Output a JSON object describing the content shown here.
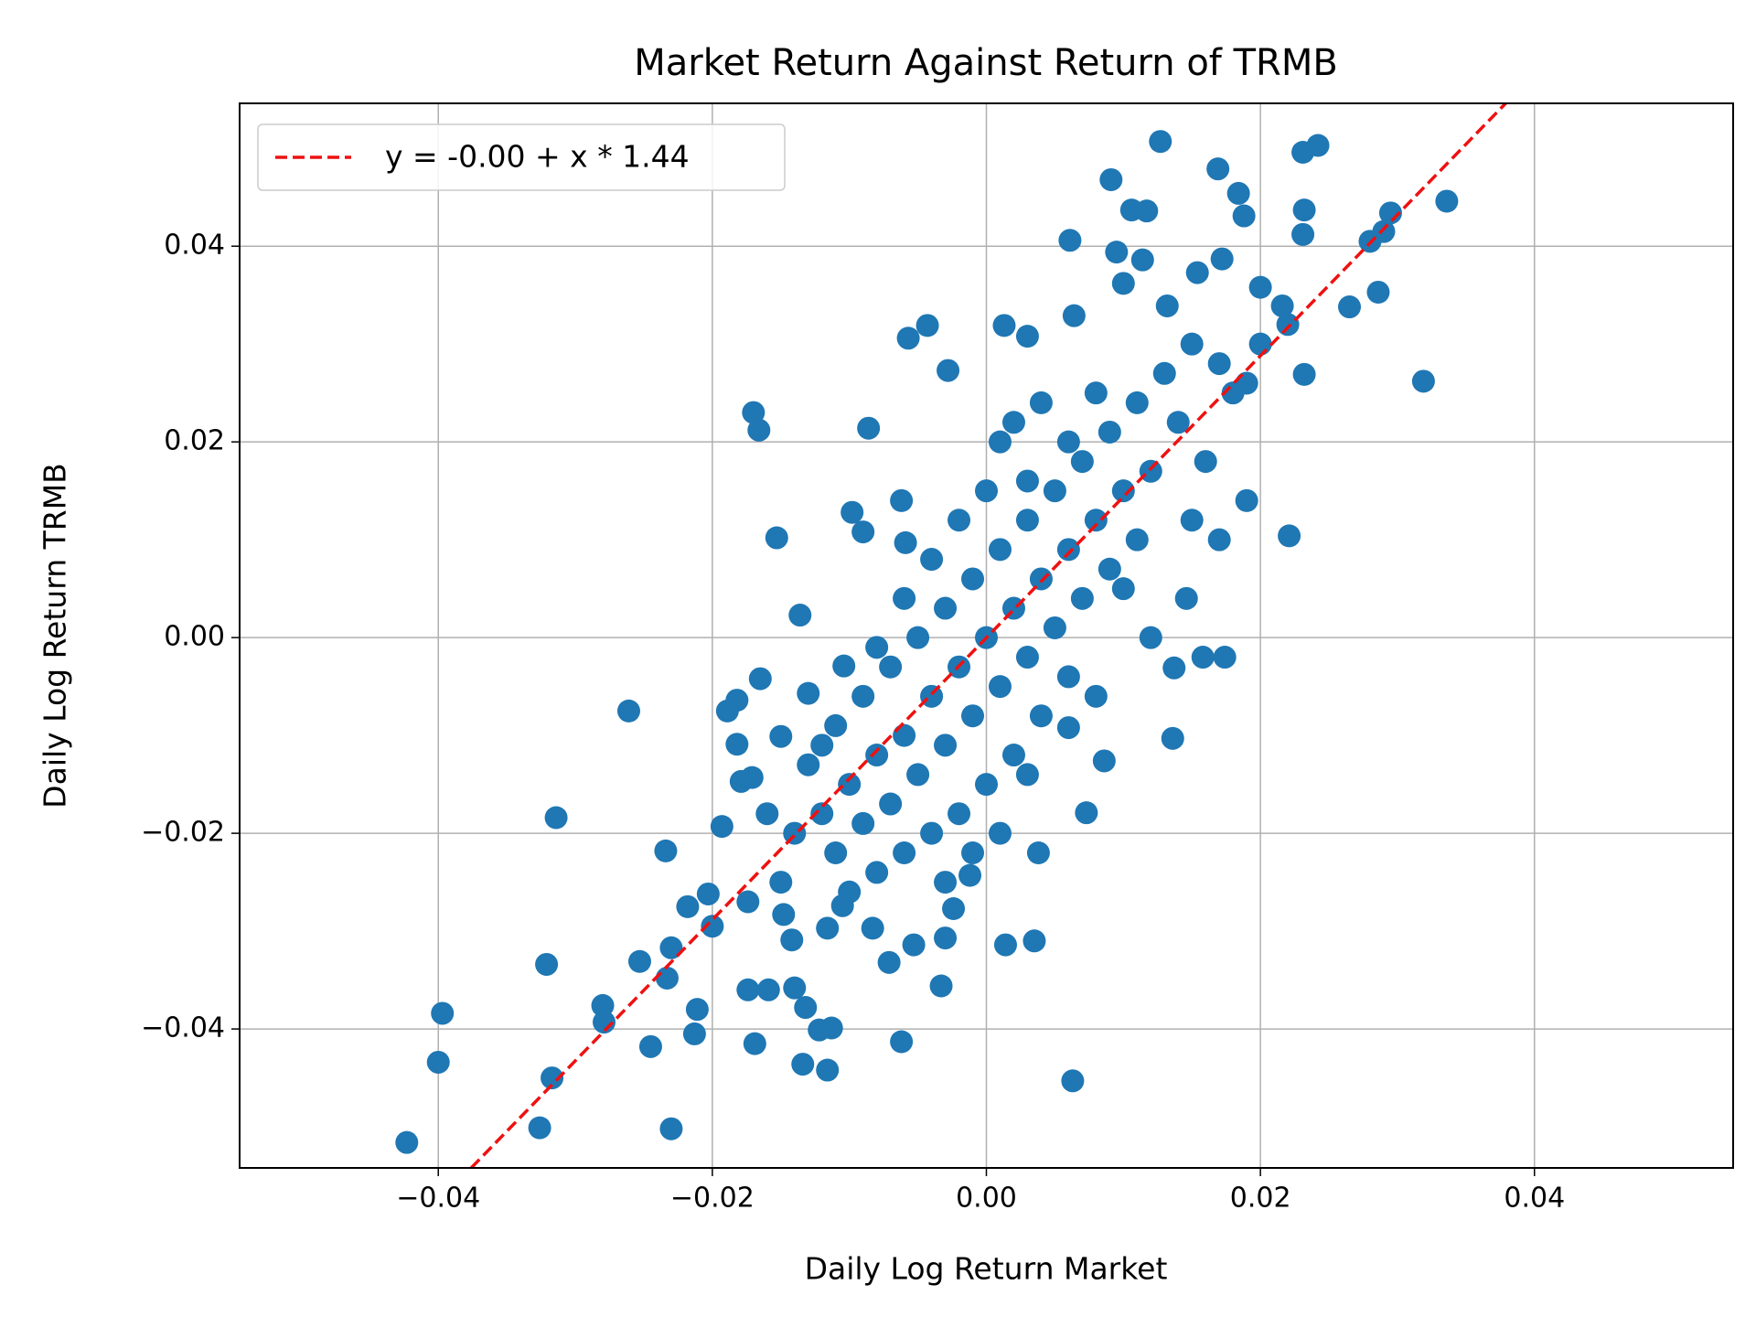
{
  "chart_data": {
    "type": "scatter",
    "title": "Market Return Against Return of TRMB",
    "x_label": "Daily Log Return Market",
    "y_label": "Daily Log Return TRMB",
    "color": "#1f77b4",
    "grid": true,
    "legend": "upper left",
    "xlim": [
      -0.0545,
      0.0545
    ],
    "ylim": [
      -0.0542,
      0.0546
    ],
    "xticks": [
      {
        "value": -0.04,
        "label": "−0.04"
      },
      {
        "value": -0.02,
        "label": "−0.02"
      },
      {
        "value": 0,
        "label": "0.00"
      },
      0.02,
      0.04
    ],
    "yticks": [
      {
        "value": -0.04,
        "label": "−0.04"
      },
      {
        "value": -0.02,
        "label": "−0.02"
      },
      {
        "value": 0,
        "label": "0.00"
      },
      0.02,
      0.04
    ],
    "x": [
      -0.0423,
      -0.0397,
      -0.04,
      -0.0326,
      -0.0321,
      -0.0317,
      -0.0314,
      -0.028,
      -0.0279,
      -0.0261,
      -0.0253,
      -0.0245,
      -0.0234,
      -0.0233,
      -0.023,
      -0.023,
      -0.0218,
      -0.0213,
      -0.0211,
      -0.0203,
      -0.02,
      -0.0193,
      -0.0189,
      -0.0182,
      -0.0182,
      -0.0179,
      -0.0174,
      -0.0174,
      -0.0171,
      -0.017,
      -0.0166,
      -0.0169,
      -0.0165,
      -0.0159,
      -0.0153,
      -0.015,
      -0.0148,
      -0.0142,
      -0.014,
      -0.0136,
      -0.0134,
      -0.0132,
      -0.013,
      -0.0122,
      -0.0116,
      -0.0113,
      -0.0116,
      -0.0105,
      -0.0104,
      -0.0098,
      -0.009,
      -0.0086,
      -0.0083,
      -0.0071,
      -0.0062,
      -0.0062,
      -0.0059,
      -0.0057,
      -0.0043,
      -0.0028,
      -0.0053,
      -0.0033,
      -0.003,
      -0.0024,
      -0.0012,
      0.0013,
      0.0014,
      0.003,
      0.0035,
      0.0038,
      0.0061,
      0.0063,
      0.006,
      0.0064,
      0.0073,
      0.0086,
      0.0091,
      0.0095,
      0.01,
      0.0106,
      0.0117,
      0.0127,
      0.0114,
      0.0132,
      0.0136,
      0.0137,
      0.0146,
      0.0158,
      0.0174,
      0.0154,
      0.0169,
      0.0172,
      0.0184,
      0.0188,
      0.019,
      0.02,
      0.0216,
      0.0221,
      0.0231,
      0.0242,
      0.0232,
      0.0231,
      0.0232,
      0.0265,
      0.028,
      0.0286,
      0.029,
      0.0295,
      0.0319,
      0.0336,
      -0.012,
      -0.01,
      -0.008,
      -0.006,
      -0.004,
      -0.002,
      0,
      0.002,
      0.004,
      0.006,
      0.008,
      0.01,
      -0.011,
      -0.009,
      -0.007,
      -0.005,
      -0.003,
      -0.001,
      0.001,
      0.003,
      0.005,
      0.007,
      0.009,
      0.011,
      -0.013,
      -0.011,
      -0.009,
      -0.007,
      -0.005,
      -0.003,
      -0.001,
      0.001,
      0.003,
      0.005,
      0.007,
      0.009,
      0.011,
      0.013,
      0.015,
      0.017,
      0.014,
      0.016,
      0.012,
      0.018,
      0.02,
      0.022,
      0,
      0.002,
      0.004,
      -0.002,
      -0.004,
      -0.006,
      -0.008,
      0,
      0.002,
      0.004,
      0.006,
      -0.002,
      -0.004,
      -0.006,
      -0.008,
      -0.01,
      -0.014,
      -0.015,
      0.01,
      0.012,
      0.008,
      0.015,
      0.017,
      0.019,
      -0.016,
      -0.012,
      0.001,
      0.003,
      0.006,
      0.008,
      -0.003,
      -0.001,
      0.001,
      0.003
    ],
    "values": [
      -0.0516,
      -0.0384,
      -0.0434,
      -0.0501,
      -0.0334,
      -0.045,
      -0.0184,
      -0.0376,
      -0.0393,
      -0.0075,
      -0.0331,
      -0.0418,
      -0.0218,
      -0.0348,
      -0.0317,
      -0.0502,
      -0.0275,
      -0.0405,
      -0.038,
      -0.0262,
      -0.0295,
      -0.0193,
      -0.0075,
      -0.0064,
      -0.0109,
      -0.0147,
      -0.036,
      -0.027,
      -0.0143,
      0.023,
      0.0212,
      -0.0415,
      -0.0042,
      -0.036,
      0.0102,
      -0.0101,
      -0.0283,
      -0.0309,
      -0.0358,
      0.0023,
      -0.0436,
      -0.0378,
      -0.0057,
      -0.0401,
      -0.0442,
      -0.0399,
      -0.0297,
      -0.0274,
      -0.0029,
      0.0128,
      0.0108,
      0.0214,
      -0.0297,
      -0.0332,
      -0.0413,
      0.014,
      0.0097,
      0.0306,
      0.0319,
      0.0273,
      -0.0314,
      -0.0356,
      -0.0307,
      -0.0277,
      -0.0243,
      0.0319,
      -0.0314,
      0.0308,
      -0.031,
      -0.022,
      0.0406,
      -0.0453,
      -0.0092,
      0.0329,
      -0.0179,
      -0.0126,
      0.0468,
      0.0394,
      0.0362,
      0.0437,
      0.0436,
      0.0507,
      0.0386,
      0.0339,
      -0.0103,
      -0.0031,
      0.004,
      -0.002,
      -0.002,
      0.0373,
      0.0479,
      0.0387,
      0.0454,
      0.0431,
      0.014,
      0.0358,
      0.0339,
      0.0104,
      0.0496,
      0.0503,
      0.0437,
      0.0412,
      0.0269,
      0.0338,
      0.0405,
      0.0353,
      0.0415,
      0.0434,
      0.0262,
      0.0446,
      -0.018,
      -0.015,
      -0.012,
      -0.01,
      -0.006,
      -0.003,
      0,
      0.003,
      0.006,
      0.009,
      0.012,
      0.015,
      -0.022,
      -0.019,
      -0.017,
      -0.014,
      -0.011,
      -0.008,
      -0.005,
      -0.002,
      0.001,
      0.004,
      0.007,
      0.01,
      -0.013,
      -0.009,
      -0.006,
      -0.003,
      0,
      0.003,
      0.006,
      0.009,
      0.012,
      0.015,
      0.018,
      0.021,
      0.024,
      0.027,
      0.03,
      0.028,
      0.022,
      0.018,
      0.017,
      0.025,
      0.03,
      0.032,
      0.015,
      0.022,
      0.024,
      0.012,
      0.008,
      0.004,
      -0.001,
      -0.015,
      -0.012,
      -0.008,
      -0.004,
      -0.018,
      -0.02,
      -0.022,
      -0.024,
      -0.026,
      -0.02,
      -0.025,
      0.005,
      0,
      -0.006,
      0.012,
      0.01,
      0.026,
      -0.018,
      -0.011,
      0.02,
      0.016,
      0.02,
      0.025,
      -0.025,
      -0.022,
      -0.02,
      -0.014
    ],
    "fit": {
      "name": "y = -0.00 + x * 1.44",
      "color": "#ee1111",
      "x": [
        -0.0376,
        0.0379
      ],
      "values": [
        -0.0542,
        0.0546
      ]
    }
  }
}
